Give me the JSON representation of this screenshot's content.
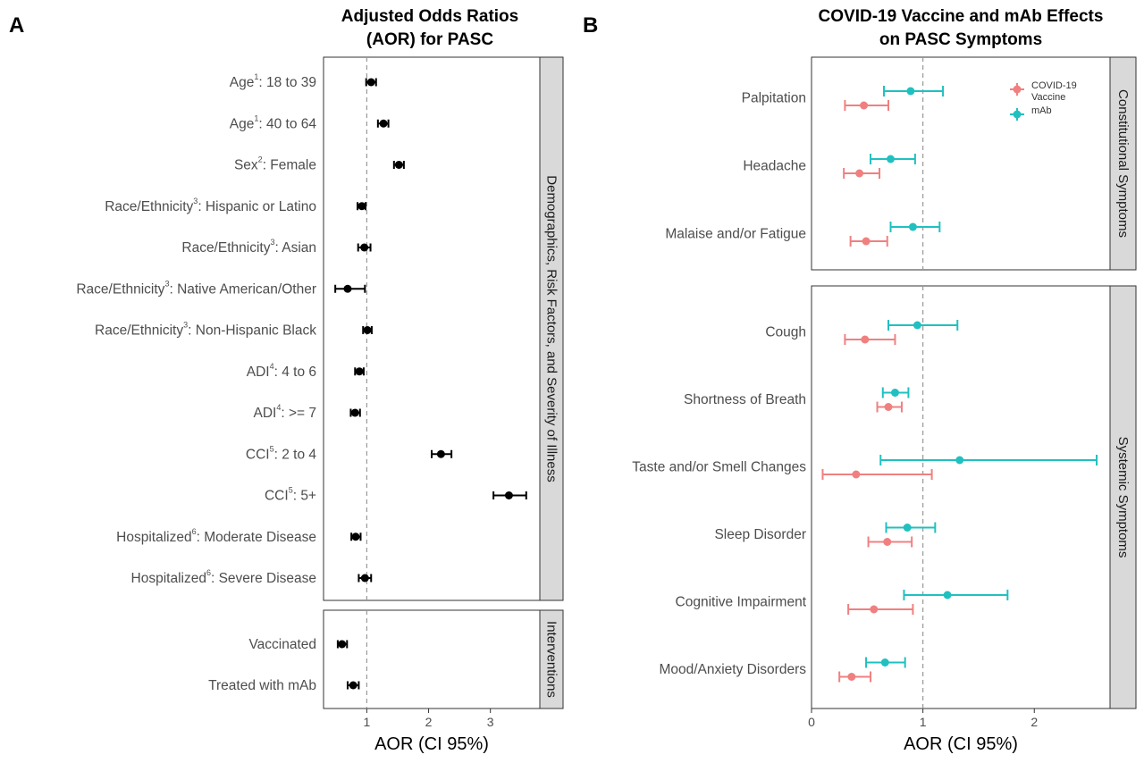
{
  "panel_a": {
    "letter": "A",
    "title_lines": [
      "Adjusted Odds Ratios",
      "(AOR) for PASC"
    ]
  },
  "panel_b": {
    "letter": "B",
    "title_lines": [
      "COVID-19 Vaccine and mAb Effects",
      "on PASC Symptoms"
    ]
  },
  "colors": {
    "black_points": "#000000",
    "covid_vaccine": "#f08080",
    "mab": "#20c0c0",
    "strip_fill": "#d9d9d9",
    "panel_border": "#333333",
    "reference_line": "#999999"
  },
  "chart_data": [
    {
      "type": "scatter",
      "subtype": "forest-plot",
      "title": "Adjusted Odds Ratios (AOR) for PASC",
      "xlabel": "AOR (CI 95%)",
      "xlim": [
        0.3,
        3.8
      ],
      "x_ticks": [
        1,
        2,
        3
      ],
      "reference_line": 1,
      "grid": false,
      "facets": [
        {
          "strip": "Demographics, Risk Factors, and Severity of Illness",
          "rows": [
            {
              "label": "Age",
              "sup": "1",
              "rest": ": 18 to 39",
              "aor": 1.07,
              "lo": 0.99,
              "hi": 1.15
            },
            {
              "label": "Age",
              "sup": "1",
              "rest": ": 40 to 64",
              "aor": 1.27,
              "lo": 1.18,
              "hi": 1.35
            },
            {
              "label": "Sex",
              "sup": "2",
              "rest": ": Female",
              "aor": 1.52,
              "lo": 1.44,
              "hi": 1.6
            },
            {
              "label": "Race/Ethnicity",
              "sup": "3",
              "rest": ": Hispanic or Latino",
              "aor": 0.92,
              "lo": 0.85,
              "hi": 0.98
            },
            {
              "label": "Race/Ethnicity",
              "sup": "3",
              "rest": ": Asian",
              "aor": 0.96,
              "lo": 0.86,
              "hi": 1.06
            },
            {
              "label": "Race/Ethnicity",
              "sup": "3",
              "rest": ": Native American/Other",
              "aor": 0.69,
              "lo": 0.49,
              "hi": 0.97
            },
            {
              "label": "Race/Ethnicity",
              "sup": "3",
              "rest": ": Non-Hispanic Black",
              "aor": 1.01,
              "lo": 0.94,
              "hi": 1.08
            },
            {
              "label": "ADI",
              "sup": "4",
              "rest": ": 4 to 6",
              "aor": 0.88,
              "lo": 0.81,
              "hi": 0.95
            },
            {
              "label": "ADI",
              "sup": "4",
              "rest": ": >= 7",
              "aor": 0.81,
              "lo": 0.74,
              "hi": 0.89
            },
            {
              "label": "CCI",
              "sup": "5",
              "rest": ": 2 to 4",
              "aor": 2.2,
              "lo": 2.05,
              "hi": 2.37
            },
            {
              "label": "CCI",
              "sup": "5",
              "rest": ": 5+",
              "aor": 3.3,
              "lo": 3.05,
              "hi": 3.58
            },
            {
              "label": "Hospitalized",
              "sup": "6",
              "rest": ": Moderate Disease",
              "aor": 0.82,
              "lo": 0.75,
              "hi": 0.9
            },
            {
              "label": "Hospitalized",
              "sup": "6",
              "rest": ": Severe Disease",
              "aor": 0.97,
              "lo": 0.87,
              "hi": 1.07
            }
          ]
        },
        {
          "strip": "Interventions",
          "rows": [
            {
              "label": "Vaccinated",
              "sup": "",
              "rest": "",
              "aor": 0.6,
              "lo": 0.53,
              "hi": 0.68
            },
            {
              "label": "Treated with mAb",
              "sup": "",
              "rest": "",
              "aor": 0.78,
              "lo": 0.69,
              "hi": 0.87
            }
          ]
        }
      ]
    },
    {
      "type": "scatter",
      "subtype": "forest-plot",
      "title": "COVID-19 Vaccine and mAb Effects on PASC Symptoms",
      "xlabel": "AOR (CI 95%)",
      "xlim": [
        0,
        2.68
      ],
      "x_ticks": [
        0,
        1,
        2
      ],
      "reference_line": 1,
      "grid": false,
      "legend": {
        "placement": "top-right",
        "entries": [
          {
            "lines": [
              "COVID-19",
              "Vaccine"
            ],
            "series": "vaccine"
          },
          {
            "lines": [
              "mAb"
            ],
            "series": "mab"
          }
        ]
      },
      "facets": [
        {
          "strip": "Constitutional Symptoms",
          "rows": [
            {
              "label": "Palpitation",
              "vaccine": {
                "aor": 0.47,
                "lo": 0.3,
                "hi": 0.69
              },
              "mab": {
                "aor": 0.89,
                "lo": 0.65,
                "hi": 1.18
              }
            },
            {
              "label": "Headache",
              "vaccine": {
                "aor": 0.43,
                "lo": 0.29,
                "hi": 0.61
              },
              "mab": {
                "aor": 0.71,
                "lo": 0.53,
                "hi": 0.93
              }
            },
            {
              "label": "Malaise and/or Fatigue",
              "vaccine": {
                "aor": 0.49,
                "lo": 0.35,
                "hi": 0.68
              },
              "mab": {
                "aor": 0.91,
                "lo": 0.71,
                "hi": 1.15
              }
            }
          ]
        },
        {
          "strip": "Systemic Symptoms",
          "rows": [
            {
              "label": "Cough",
              "vaccine": {
                "aor": 0.48,
                "lo": 0.3,
                "hi": 0.75
              },
              "mab": {
                "aor": 0.95,
                "lo": 0.69,
                "hi": 1.31
              }
            },
            {
              "label": "Shortness of Breath",
              "vaccine": {
                "aor": 0.69,
                "lo": 0.59,
                "hi": 0.81
              },
              "mab": {
                "aor": 0.75,
                "lo": 0.64,
                "hi": 0.87
              }
            },
            {
              "label": "Taste and/or Smell Changes",
              "vaccine": {
                "aor": 0.4,
                "lo": 0.1,
                "hi": 1.08
              },
              "mab": {
                "aor": 1.33,
                "lo": 0.62,
                "hi": 2.56
              }
            },
            {
              "label": "Sleep Disorder",
              "vaccine": {
                "aor": 0.68,
                "lo": 0.51,
                "hi": 0.9
              },
              "mab": {
                "aor": 0.86,
                "lo": 0.67,
                "hi": 1.11
              }
            },
            {
              "label": "Cognitive Impairment",
              "vaccine": {
                "aor": 0.56,
                "lo": 0.33,
                "hi": 0.91
              },
              "mab": {
                "aor": 1.22,
                "lo": 0.83,
                "hi": 1.76
              }
            },
            {
              "label": "Mood/Anxiety Disorders",
              "vaccine": {
                "aor": 0.36,
                "lo": 0.25,
                "hi": 0.53
              },
              "mab": {
                "aor": 0.66,
                "lo": 0.49,
                "hi": 0.84
              }
            }
          ]
        }
      ]
    }
  ]
}
